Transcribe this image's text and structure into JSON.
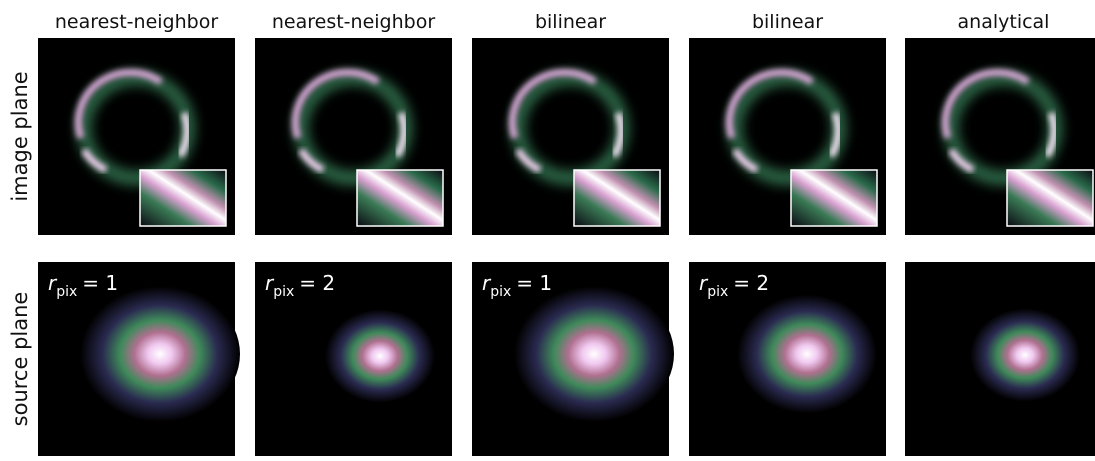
{
  "columns": [
    {
      "title": "nearest-neighbor",
      "annotation": {
        "base": "r",
        "sub": "pix",
        "rest": "= 1"
      }
    },
    {
      "title": "nearest-neighbor",
      "annotation": {
        "base": "r",
        "sub": "pix",
        "rest": "= 2"
      }
    },
    {
      "title": "bilinear",
      "annotation": {
        "base": "r",
        "sub": "pix",
        "rest": "= 1"
      }
    },
    {
      "title": "bilinear",
      "annotation": {
        "base": "r",
        "sub": "pix",
        "rest": "= 2"
      }
    },
    {
      "title": "analytical"
    }
  ],
  "rows": [
    "image plane",
    "source plane"
  ]
}
